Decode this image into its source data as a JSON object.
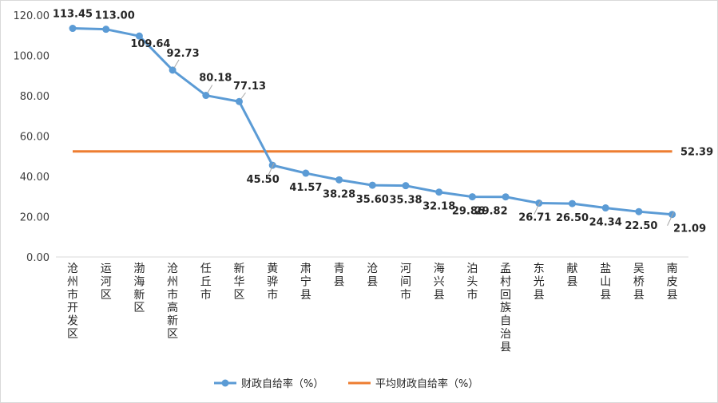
{
  "chart_data": {
    "type": "line",
    "categories": [
      "沧州市开发区",
      "运河区",
      "渤海新区",
      "沧州市高新区",
      "任丘市",
      "新华区",
      "黄骅市",
      "肃宁县",
      "青县",
      "沧县",
      "河间市",
      "海兴县",
      "泊头市",
      "孟村回族自治县",
      "东光县",
      "献县",
      "盐山县",
      "吴桥县",
      "南皮县"
    ],
    "series": [
      {
        "name": "财政自给率（%）",
        "values": [
          113.45,
          113.0,
          109.64,
          92.73,
          80.18,
          77.13,
          45.5,
          41.57,
          38.28,
          35.6,
          35.38,
          32.18,
          29.86,
          29.82,
          26.71,
          26.5,
          24.34,
          22.5,
          21.09
        ],
        "color": "#5b9bd5"
      },
      {
        "name": "平均财政自给率（%）",
        "values": [
          52.39,
          52.39,
          52.39,
          52.39,
          52.39,
          52.39,
          52.39,
          52.39,
          52.39,
          52.39,
          52.39,
          52.39,
          52.39,
          52.39,
          52.39,
          52.39,
          52.39,
          52.39,
          52.39
        ],
        "color": "#ed7d31"
      }
    ],
    "avg_label": "52.39",
    "value_labels": [
      "113.45",
      "113.00",
      "109.64",
      "92.73",
      "80.18",
      "77.13",
      "45.50",
      "41.57",
      "38.28",
      "35.60",
      "35.38",
      "32.18",
      "29.86",
      "29.82",
      "26.71",
      "26.50",
      "24.34",
      "22.50",
      "21.09"
    ],
    "y_ticks": [
      "0.00",
      "20.00",
      "40.00",
      "60.00",
      "80.00",
      "100.00",
      "120.00"
    ],
    "ylim": [
      0,
      120
    ],
    "grid": false,
    "legend": "bottom"
  }
}
